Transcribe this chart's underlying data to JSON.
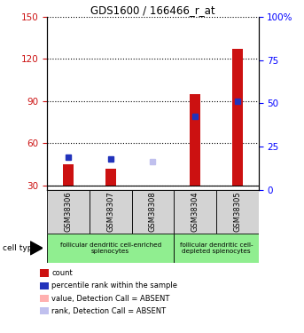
{
  "title": "GDS1600 / 166466_r_at",
  "samples": [
    "GSM38306",
    "GSM38307",
    "GSM38308",
    "GSM38304",
    "GSM38305"
  ],
  "ylim_left": [
    27,
    150
  ],
  "ylim_right": [
    0,
    100
  ],
  "yticks_left": [
    30,
    60,
    90,
    120,
    150
  ],
  "yticks_right": [
    0,
    25,
    50,
    75,
    100
  ],
  "yright_labels": [
    "0",
    "25",
    "50",
    "75",
    "100%"
  ],
  "bar_bottom": 30,
  "red_values": [
    45,
    42,
    30,
    95,
    127
  ],
  "blue_values": [
    50,
    49,
    47,
    79,
    90
  ],
  "absent_flags": [
    false,
    false,
    true,
    false,
    false
  ],
  "groups": [
    {
      "label": "follicular dendritic cell-enriched\nsplenocytes",
      "samples": [
        0,
        1,
        2
      ],
      "color": "#90EE90"
    },
    {
      "label": "follicular dendritic cell-\ndepleted splenocytes",
      "samples": [
        3,
        4
      ],
      "color": "#90EE90"
    }
  ],
  "red_color": "#CC1111",
  "blue_color": "#2233BB",
  "pink_color": "#FFB0B0",
  "lavender_color": "#C0C0EE",
  "bg_color": "#D3D3D3",
  "legend_items": [
    {
      "color": "#CC1111",
      "label": "count"
    },
    {
      "color": "#2233BB",
      "label": "percentile rank within the sample"
    },
    {
      "color": "#FFB0B0",
      "label": "value, Detection Call = ABSENT"
    },
    {
      "color": "#C0C0EE",
      "label": "rank, Detection Call = ABSENT"
    }
  ]
}
